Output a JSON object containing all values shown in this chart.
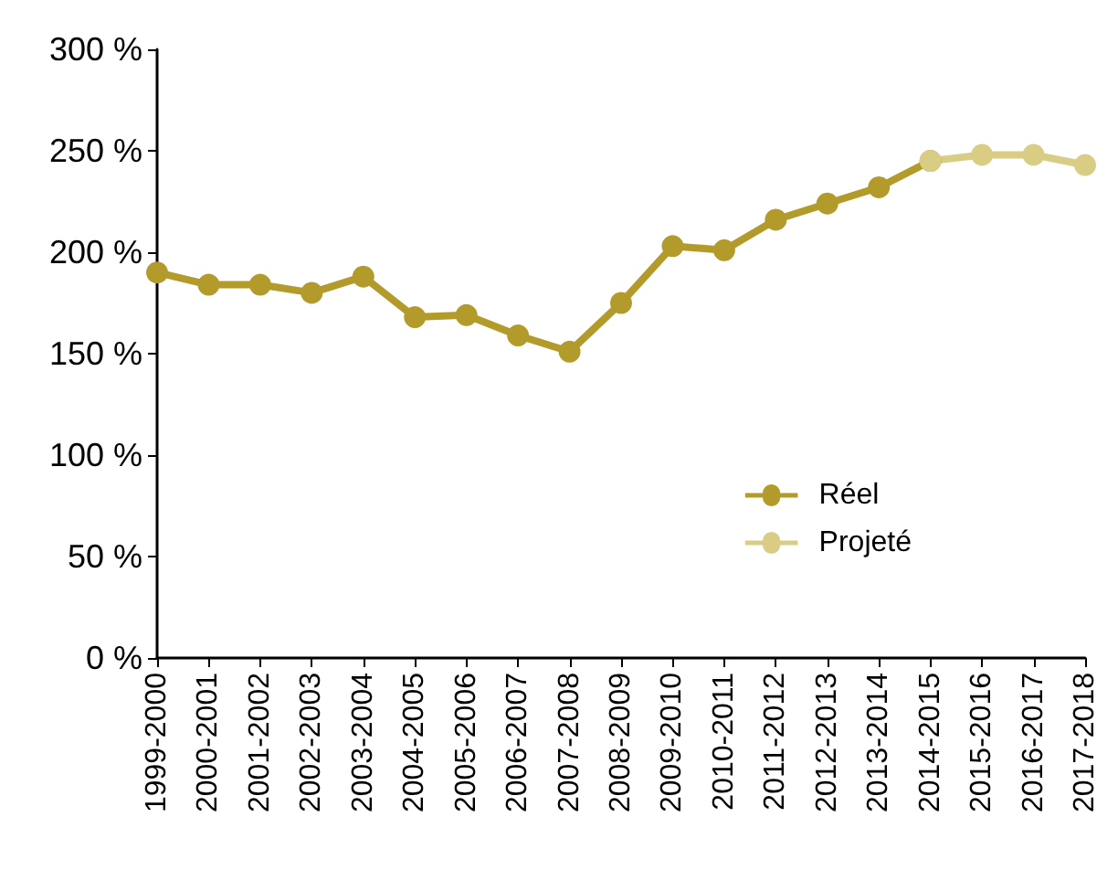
{
  "chart_data": {
    "type": "line",
    "categories": [
      "1999-2000",
      "2000-2001",
      "2001-2002",
      "2002-2003",
      "2003-2004",
      "2004-2005",
      "2005-2006",
      "2006-2007",
      "2007-2008",
      "2008-2009",
      "2009-2010",
      "2010-2011",
      "2011-2012",
      "2012-2013",
      "2013-2014",
      "2014-2015",
      "2015-2016",
      "2016-2017",
      "2017-2018"
    ],
    "series": [
      {
        "name": "Réel",
        "color": "#b39b2b",
        "values": [
          190,
          184,
          184,
          180,
          188,
          168,
          169,
          159,
          151,
          175,
          203,
          201,
          216,
          224,
          232,
          245,
          null,
          null,
          null
        ]
      },
      {
        "name": "Projeté",
        "color": "#d9cd85",
        "values": [
          null,
          null,
          null,
          null,
          null,
          null,
          null,
          null,
          null,
          null,
          null,
          null,
          null,
          null,
          null,
          245,
          248,
          248,
          243
        ]
      }
    ],
    "ylim": [
      0,
      300
    ],
    "yticks": [
      {
        "value": 0,
        "label": "0 %"
      },
      {
        "value": 50,
        "label": "50 %"
      },
      {
        "value": 100,
        "label": "100 %"
      },
      {
        "value": 150,
        "label": "150 %"
      },
      {
        "value": 200,
        "label": "200 %"
      },
      {
        "value": 250,
        "label": "250 %"
      },
      {
        "value": 300,
        "label": "300 %"
      }
    ],
    "grid": false,
    "legend": "right",
    "marker": "circle",
    "line_style": "solid"
  }
}
